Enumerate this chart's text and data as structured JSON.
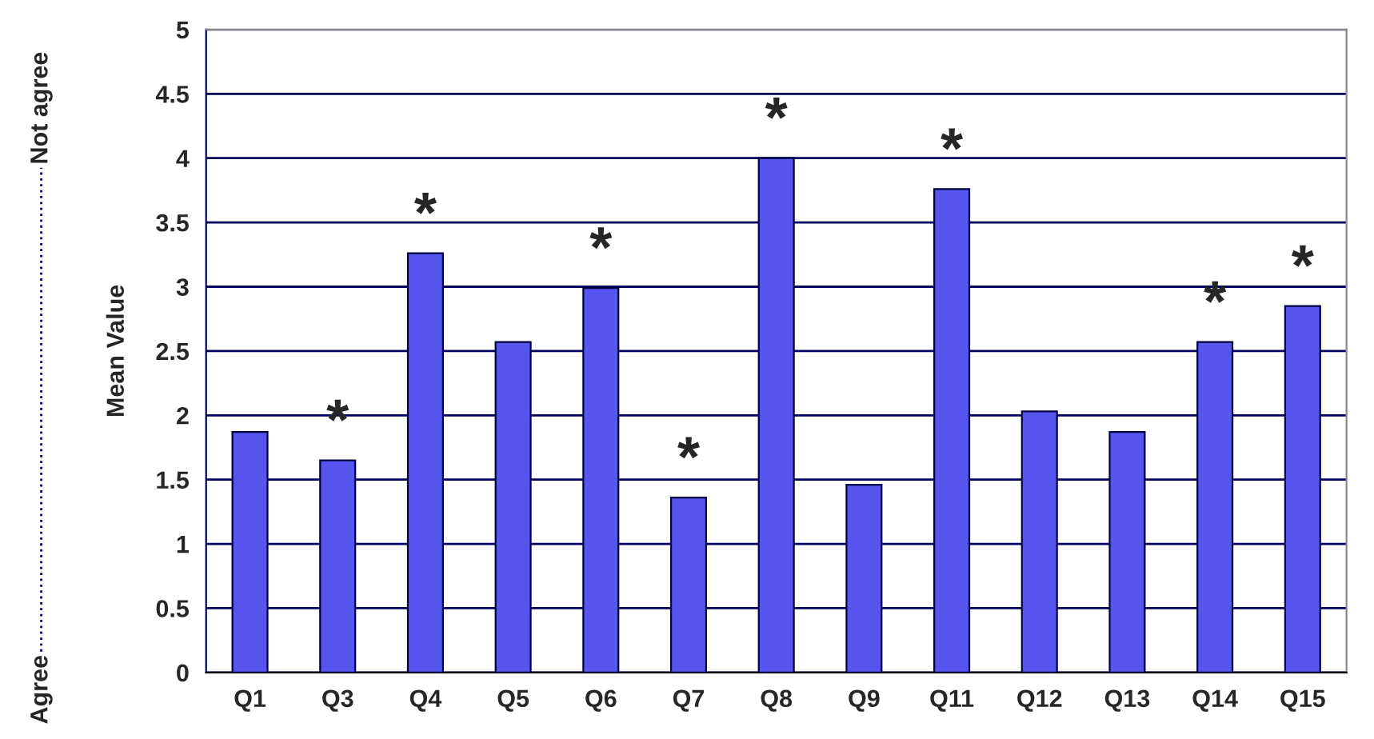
{
  "chart_data": {
    "type": "bar",
    "ylabel": "Mean Value",
    "categories": [
      "Q1",
      "Q3",
      "Q4",
      "Q5",
      "Q6",
      "Q7",
      "Q8",
      "Q9",
      "Q11",
      "Q12",
      "Q13",
      "Q14",
      "Q15"
    ],
    "values": [
      1.87,
      1.65,
      3.26,
      2.57,
      2.99,
      1.36,
      4.0,
      1.46,
      3.76,
      2.03,
      1.87,
      2.57,
      2.85
    ],
    "color": "#5656ee",
    "ylim": [
      0,
      5
    ],
    "yticks": [
      0,
      0.5,
      1,
      1.5,
      2,
      2.5,
      3,
      3.5,
      4,
      4.5,
      5
    ],
    "grid": "y",
    "annotations": [
      {
        "text": "*",
        "x": "Q3",
        "y": 1.65
      },
      {
        "text": "*",
        "x": "Q4",
        "y": 3.26
      },
      {
        "text": "*",
        "x": "Q6",
        "y": 2.99
      },
      {
        "text": "*",
        "x": "Q7",
        "y": 1.36
      },
      {
        "text": "*",
        "x": "Q8",
        "y": 4.0
      },
      {
        "text": "*",
        "x": "Q11",
        "y": 3.76
      },
      {
        "text": "*",
        "x": "Q14",
        "y": 2.57
      },
      {
        "text": "*",
        "x": "Q15",
        "y": 2.85
      },
      "Agree",
      "Not agree"
    ]
  }
}
